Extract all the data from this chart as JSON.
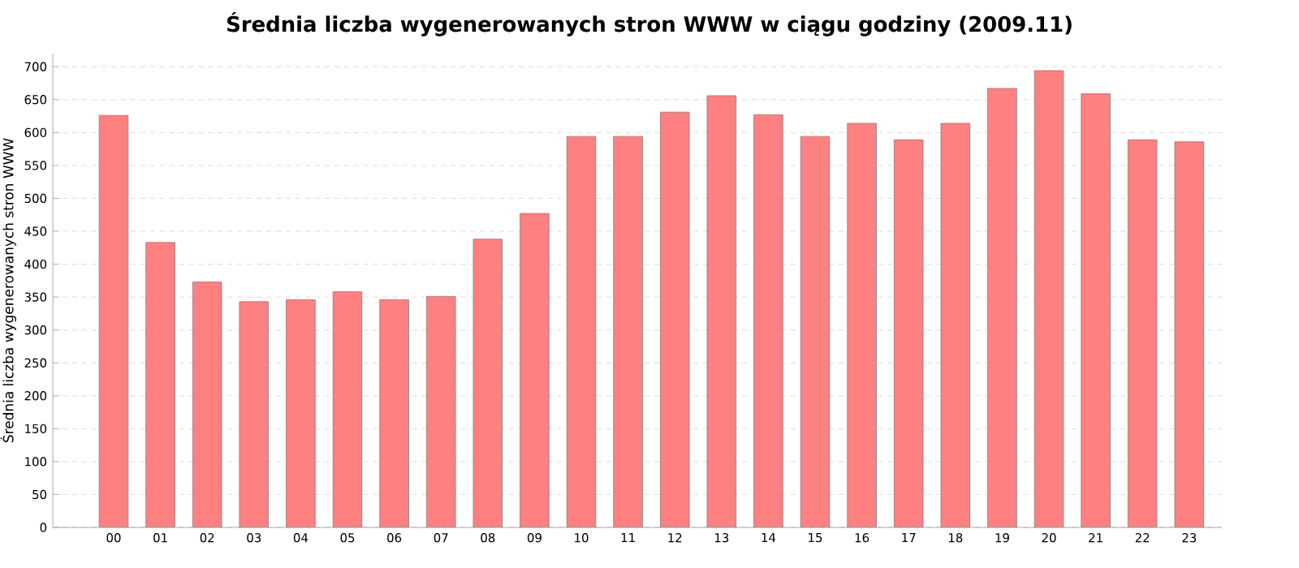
{
  "chart_data": {
    "type": "bar",
    "title": "Średnia liczba wygenerowanych stron WWW w ciągu godziny (2009.11)",
    "ylabel": "Średnia liczba wygenerowanych stron WWW",
    "categories": [
      "00",
      "01",
      "02",
      "03",
      "04",
      "05",
      "06",
      "07",
      "08",
      "09",
      "10",
      "11",
      "12",
      "13",
      "14",
      "15",
      "16",
      "17",
      "18",
      "19",
      "20",
      "21",
      "22",
      "23"
    ],
    "values": [
      626,
      433,
      373,
      343,
      346,
      358,
      346,
      351,
      438,
      477,
      594,
      594,
      631,
      656,
      627,
      594,
      614,
      589,
      614,
      667,
      694,
      659,
      589,
      586
    ],
    "color": "#ff8080",
    "ylim": [
      0,
      720
    ],
    "yticks": [
      0,
      50,
      100,
      150,
      200,
      250,
      300,
      350,
      400,
      450,
      500,
      550,
      600,
      650,
      700
    ],
    "grid": "y"
  }
}
